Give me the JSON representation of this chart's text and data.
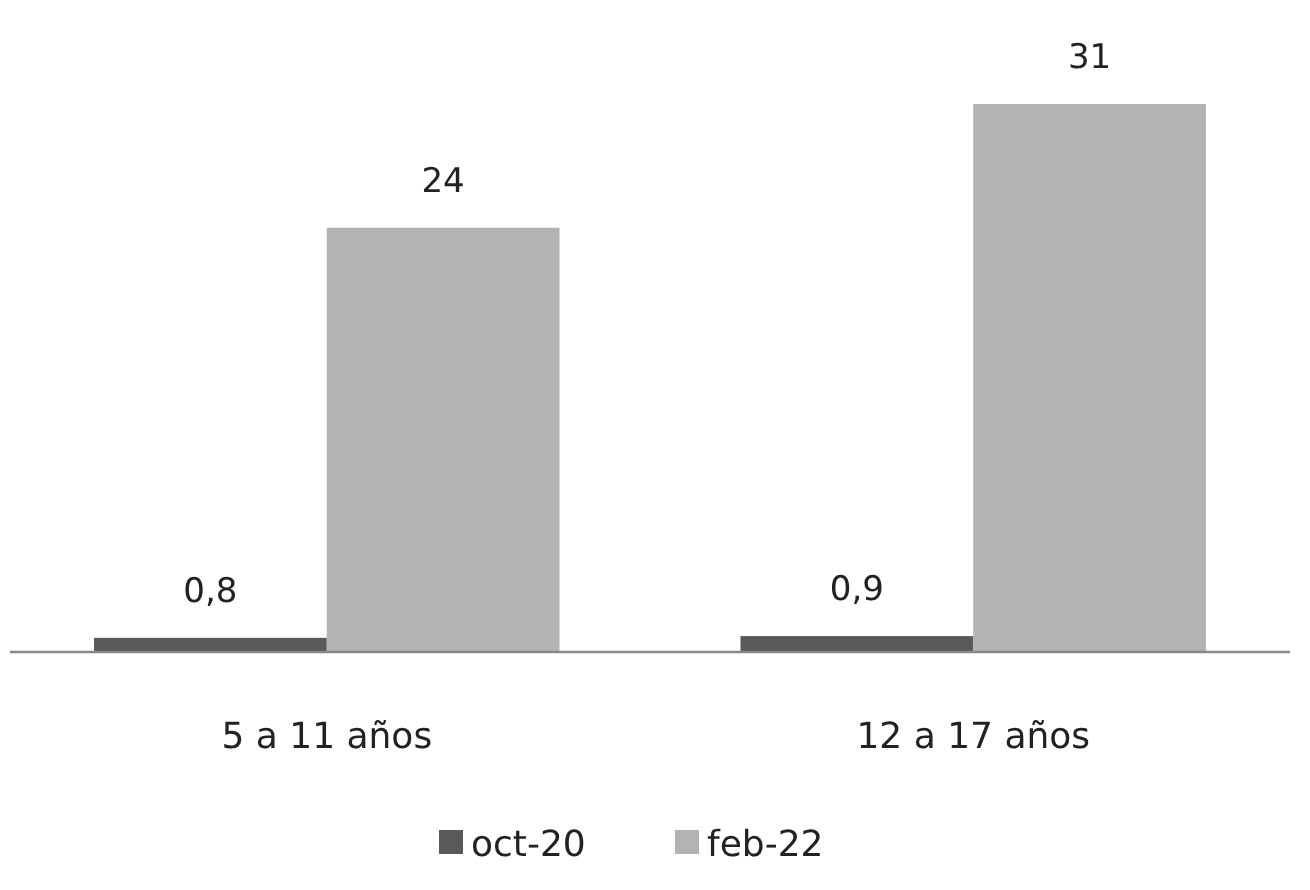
{
  "chart_data": {
    "type": "bar",
    "categories": [
      "5 a 11 años",
      "12 a 17 años"
    ],
    "series": [
      {
        "name": "oct-20",
        "color": "#595959",
        "values": [
          0.8,
          0.9
        ],
        "value_labels": [
          "0,8",
          "0,9"
        ]
      },
      {
        "name": "feb-22",
        "color": "#b3b3b3",
        "values": [
          24,
          31
        ],
        "value_labels": [
          "24",
          "31"
        ]
      }
    ],
    "legend": "bottom",
    "grid": false
  }
}
